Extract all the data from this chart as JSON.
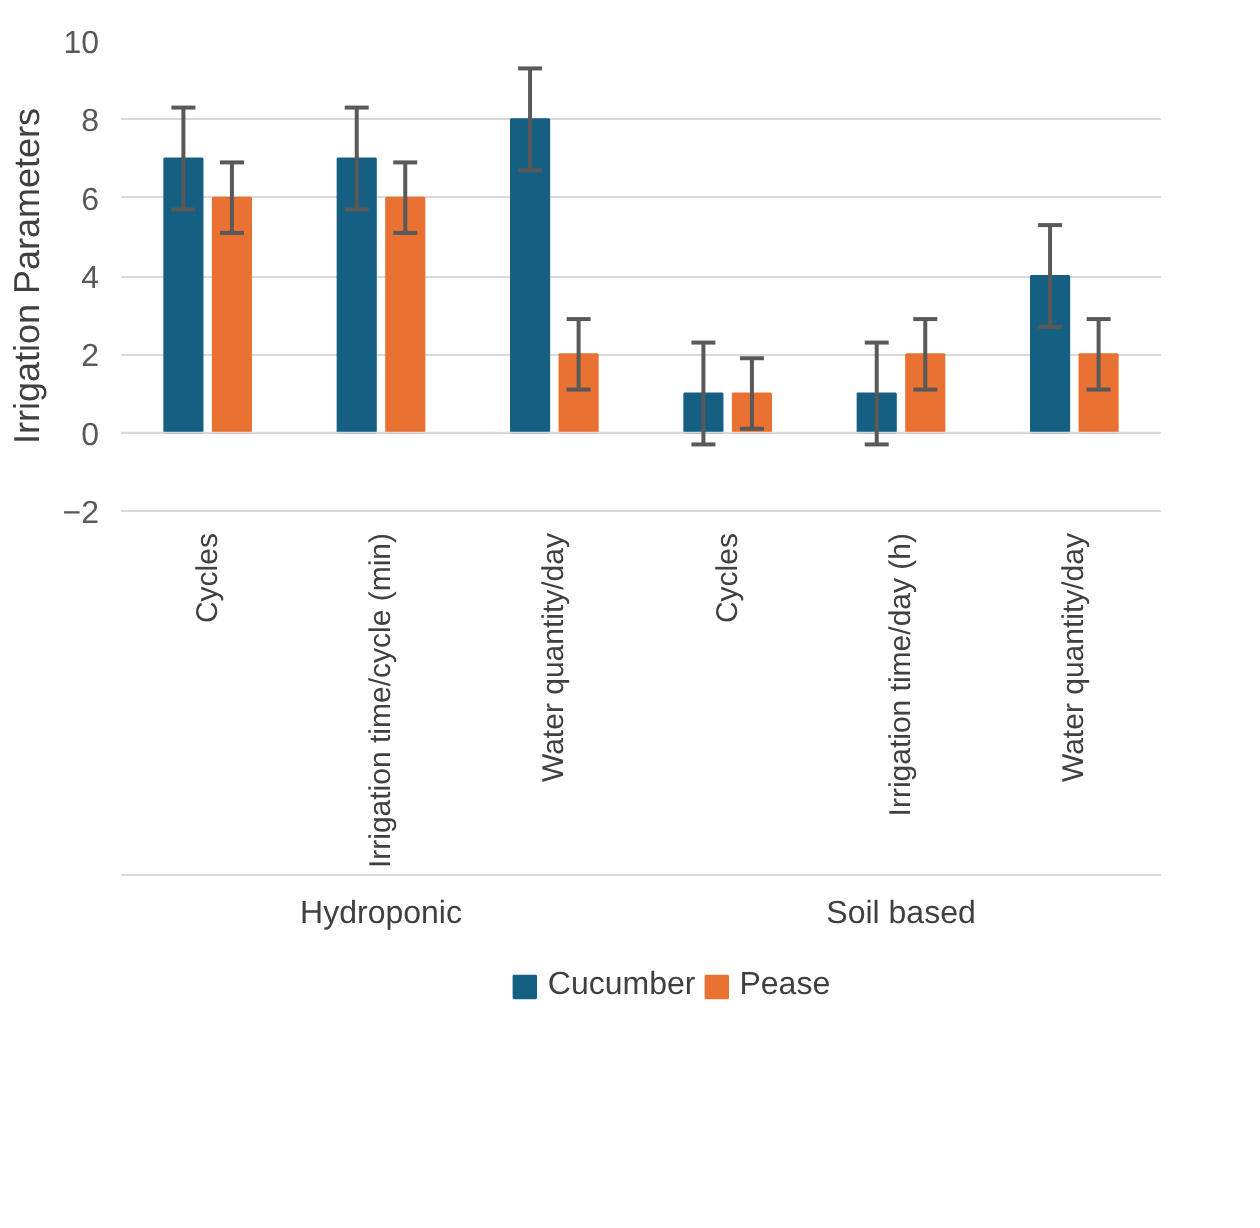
{
  "chart_data": {
    "type": "bar",
    "ylabel": "Irrigation Parameters",
    "categories": [
      "Cycles",
      "Irrigation time/cycle (min)",
      "Water quantity/day",
      "Cycles",
      "Irrigation time/day (h)",
      "Water quantity/day"
    ],
    "annotations": [
      "Hydroponic",
      "Soil based"
    ],
    "series": [
      {
        "name": "Cucumber",
        "color": "#156082",
        "values": [
          7,
          7,
          8,
          1,
          1,
          4
        ],
        "errors": [
          1.3,
          1.3,
          1.3,
          1.3,
          1.3,
          1.3
        ]
      },
      {
        "name": "Pease",
        "color": "#e97132",
        "values": [
          6,
          6,
          2,
          1,
          2,
          2
        ],
        "errors": [
          0.9,
          0.9,
          0.9,
          0.9,
          0.9,
          0.9
        ]
      }
    ],
    "ylim": [
      -2,
      10
    ],
    "yticks": [
      -2,
      0,
      2,
      4,
      6,
      8,
      10
    ],
    "grid": "y",
    "legend": "bottom"
  }
}
